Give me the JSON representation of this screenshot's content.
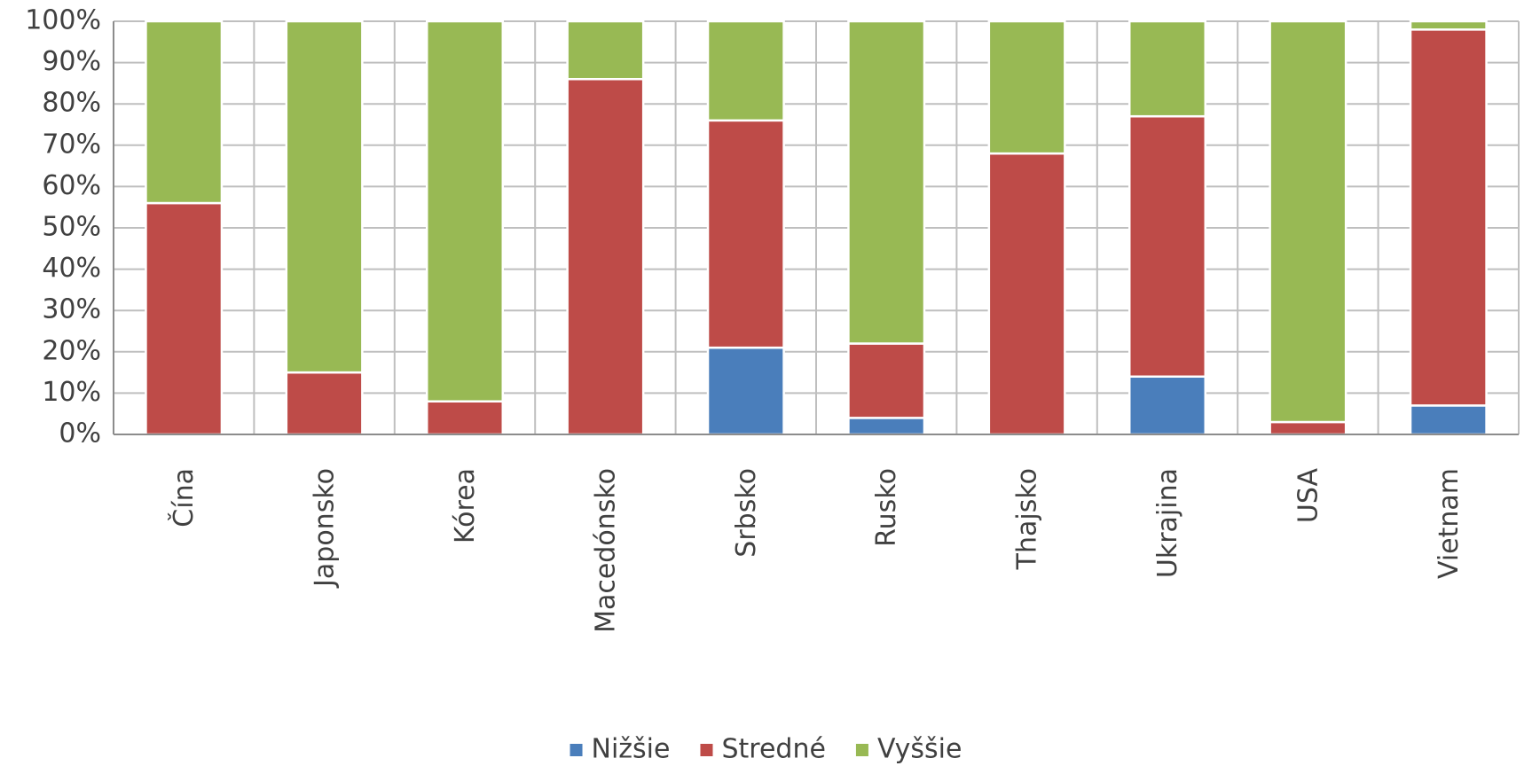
{
  "chart_data": {
    "type": "bar",
    "stacked": true,
    "percent_stacked": true,
    "categories": [
      "Čína",
      "Japonsko",
      "Kórea",
      "Macedónsko",
      "Srbsko",
      "Rusko",
      "Thajsko",
      "Ukrajina",
      "USA",
      "Vietnam"
    ],
    "series": [
      {
        "name": "Nižšie",
        "color": "#4a7ebb",
        "values": [
          0,
          0,
          0,
          0,
          21,
          4,
          0,
          14,
          0,
          7
        ]
      },
      {
        "name": "Stredné",
        "color": "#be4b48",
        "values": [
          56,
          15,
          8,
          86,
          55,
          18,
          68,
          63,
          3,
          91
        ]
      },
      {
        "name": "Vyššie",
        "color": "#98b954",
        "values": [
          44,
          85,
          92,
          14,
          24,
          78,
          32,
          23,
          97,
          2
        ]
      }
    ],
    "y_ticks": [
      "0%",
      "10%",
      "20%",
      "30%",
      "40%",
      "50%",
      "60%",
      "70%",
      "80%",
      "90%",
      "100%"
    ],
    "ylim": [
      0,
      100
    ],
    "grid": true,
    "legend_position": "bottom",
    "title": "",
    "xlabel": "",
    "ylabel": ""
  }
}
